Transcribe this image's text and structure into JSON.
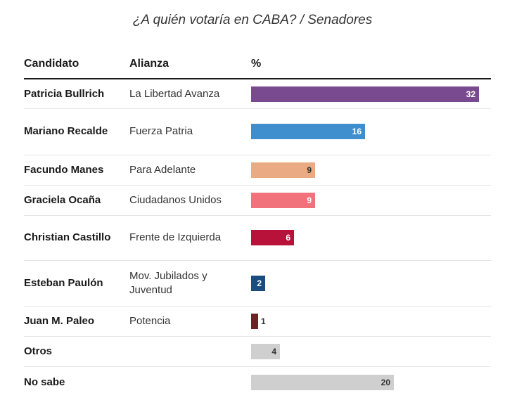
{
  "title": "¿A quién votaría en CABA? / Senadores",
  "headers": {
    "candidate": "Candidato",
    "alliance": "Alianza",
    "percent": "%"
  },
  "chart_data": {
    "type": "bar",
    "orientation": "horizontal",
    "title": "¿A quién votaría en CABA? / Senadores",
    "categories": [
      "Patricia Bullrich",
      "Mariano Recalde",
      "Facundo Manes",
      "Graciela Ocaña",
      "Christian Castillo",
      "Esteban Paulón",
      "Juan M. Paleo",
      "Otros",
      "No sabe"
    ],
    "alliances": [
      "La Libertad Avanza",
      "Fuerza Patria",
      "Para Adelante",
      "Ciudadanos Unidos",
      "Frente de Izquierda",
      "Mov. Jubilados y Juventud",
      "Potencia",
      "",
      ""
    ],
    "values": [
      32,
      16,
      9,
      9,
      6,
      2,
      1,
      4,
      20
    ],
    "colors": [
      "#7a4a90",
      "#3f8fce",
      "#eaab84",
      "#f2727c",
      "#b8123a",
      "#1b4c80",
      "#6b2323",
      "#cfcfcf",
      "#cfcfcf"
    ],
    "value_label_colors": [
      "#ffffff",
      "#ffffff",
      "#333333",
      "#ffffff",
      "#ffffff",
      "#ffffff",
      "#333333",
      "#333333",
      "#333333"
    ],
    "xlim": [
      0,
      32
    ],
    "grid": false,
    "legend": "none"
  }
}
